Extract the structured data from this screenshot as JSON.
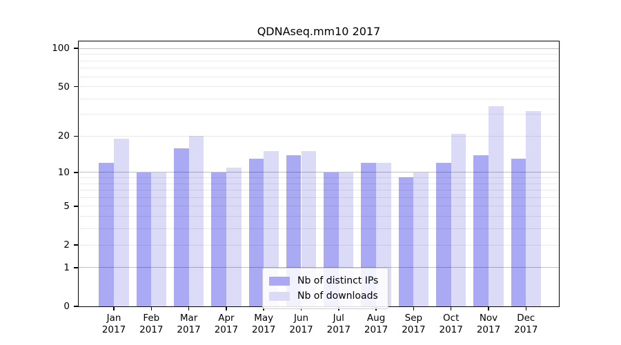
{
  "chart_data": {
    "type": "bar",
    "title": "QDNAseq.mm10 2017",
    "categories": [
      "Jan",
      "Feb",
      "Mar",
      "Apr",
      "May",
      "Jun",
      "Jul",
      "Aug",
      "Sep",
      "Oct",
      "Nov",
      "Dec"
    ],
    "x_sublabel": "2017",
    "series": [
      {
        "name": "Nb of distinct IPs",
        "color": "#a9a9f4",
        "values": [
          12,
          10,
          16,
          10,
          13,
          14,
          10,
          12,
          9,
          12,
          14,
          13
        ]
      },
      {
        "name": "Nb of downloads",
        "color": "#dbdbf8",
        "values": [
          19,
          10,
          20,
          11,
          15,
          15,
          10,
          12,
          10,
          21,
          35,
          32
        ]
      }
    ],
    "yscale": "log1p",
    "ylim": [
      0,
      113.5
    ],
    "yticks": [
      0,
      1,
      2,
      5,
      10,
      20,
      50,
      100
    ],
    "grid_major": [
      1,
      10,
      100
    ],
    "grid_minor": [
      2,
      3,
      4,
      5,
      6,
      7,
      8,
      9,
      20,
      30,
      40,
      50,
      60,
      70,
      80,
      90
    ],
    "legend_position": "lower center",
    "grid": "on"
  }
}
